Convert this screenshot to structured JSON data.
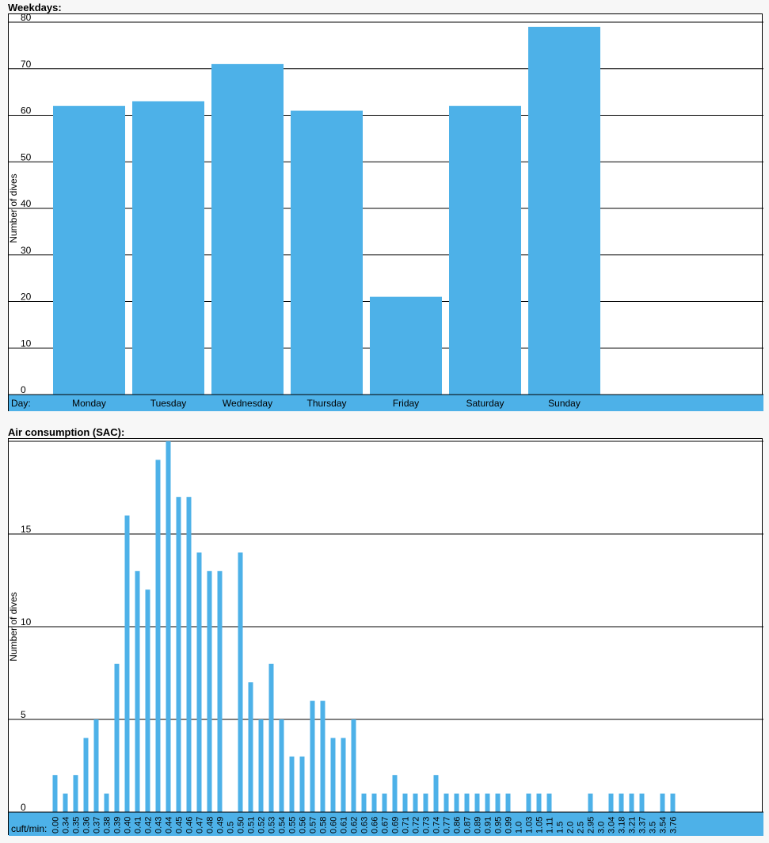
{
  "colors": {
    "bar": "#4db1e8",
    "axis_band": "#4db1e8",
    "grid": "#000000",
    "background": "#f7f7f7"
  },
  "chart_data": [
    {
      "title": "Weekdays:",
      "type": "bar",
      "ylabel": "Number of dives",
      "xlabel": "Day:",
      "ylim": [
        0,
        80
      ],
      "yticks": [
        0,
        10,
        20,
        30,
        40,
        50,
        60,
        70,
        80
      ],
      "grid": true,
      "categories": [
        "Monday",
        "Tuesday",
        "Wednesday",
        "Thursday",
        "Friday",
        "Saturday",
        "Sunday"
      ],
      "values": [
        62,
        63,
        71,
        61,
        21,
        62,
        79
      ]
    },
    {
      "title": "Air consumption (SAC):",
      "type": "bar",
      "ylabel": "Number of dives",
      "xlabel": "cuft/min:",
      "ylim": [
        0,
        20
      ],
      "yticks": [
        0,
        5,
        10,
        15
      ],
      "grid": true,
      "categories": [
        "0.00",
        "0.34",
        "0.35",
        "0.36",
        "0.37",
        "0.38",
        "0.39",
        "0.40",
        "0.41",
        "0.42",
        "0.43",
        "0.44",
        "0.45",
        "0.46",
        "0.47",
        "0.48",
        "0.49",
        "0.5",
        "0.50",
        "0.51",
        "0.52",
        "0.53",
        "0.54",
        "0.55",
        "0.56",
        "0.57",
        "0.58",
        "0.60",
        "0.61",
        "0.62",
        "0.63",
        "0.66",
        "0.67",
        "0.69",
        "0.71",
        "0.72",
        "0.73",
        "0.74",
        "0.77",
        "0.86",
        "0.87",
        "0.89",
        "0.91",
        "0.95",
        "0.99",
        "1.0",
        "1.03",
        "1.05",
        "1.11",
        "1.5",
        "2.0",
        "2.5",
        "2.95",
        "3.0",
        "3.04",
        "3.18",
        "3.21",
        "3.37",
        "3.5",
        "3.54",
        "3.76"
      ],
      "values": [
        2,
        1,
        2,
        4,
        5,
        1,
        8,
        16,
        13,
        12,
        19,
        20,
        17,
        17,
        14,
        13,
        13,
        0,
        14,
        7,
        5,
        8,
        5,
        3,
        3,
        6,
        6,
        4,
        4,
        5,
        1,
        1,
        1,
        2,
        1,
        1,
        1,
        2,
        1,
        1,
        1,
        1,
        1,
        1,
        1,
        0,
        1,
        1,
        1,
        0,
        0,
        0,
        1,
        0,
        1,
        1,
        1,
        1,
        0,
        1,
        1
      ]
    }
  ]
}
